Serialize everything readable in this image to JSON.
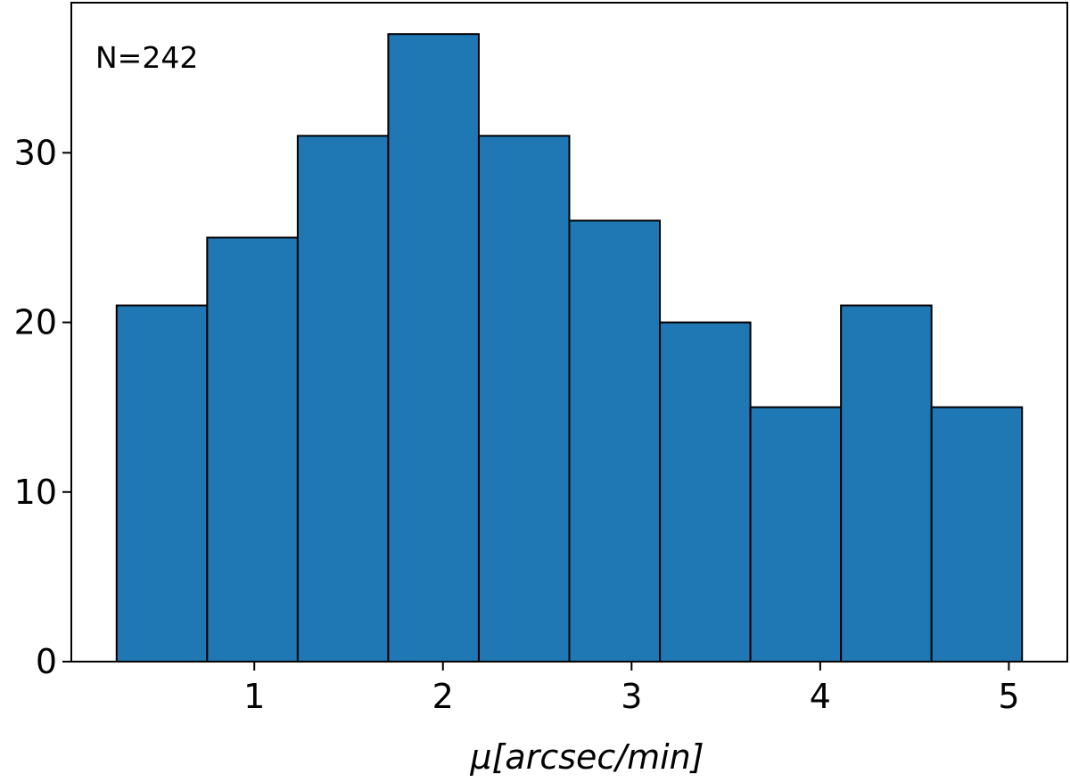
{
  "chart_data": {
    "type": "bar",
    "subtype": "histogram",
    "bin_edges": [
      0.27,
      0.75,
      1.23,
      1.71,
      2.19,
      2.67,
      3.15,
      3.63,
      4.11,
      4.59,
      5.07
    ],
    "values": [
      21,
      25,
      31,
      37,
      31,
      26,
      20,
      15,
      21,
      15
    ],
    "bar_color": "#1f77b4",
    "edge_color": "#000000",
    "xlim": [
      0.03,
      5.31
    ],
    "ylim": [
      0,
      38.85
    ],
    "x_ticks": [
      1,
      2,
      3,
      4,
      5
    ],
    "y_ticks": [
      0,
      10,
      20,
      30
    ],
    "x_tick_labels": [
      "1",
      "2",
      "3",
      "4",
      "5"
    ],
    "y_tick_labels": [
      "0",
      "10",
      "20",
      "30"
    ],
    "xlabel": "μ[arcsec/min]",
    "ylabel": "",
    "title": "",
    "annotation": "N=242",
    "annotation_placement": "top-left",
    "grid": false
  }
}
